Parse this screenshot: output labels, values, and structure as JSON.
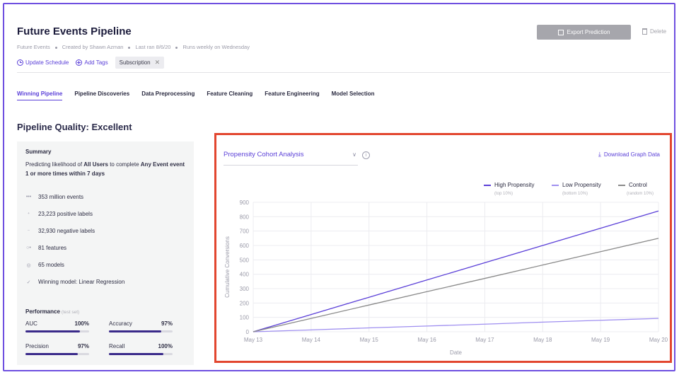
{
  "header": {
    "title": "Future Events Pipeline",
    "meta": [
      "Future Events",
      "Created by Shawn Azman",
      "Last ran 8/6/20",
      "Runs weekly on Wednesday"
    ],
    "update_schedule": "Update Schedule",
    "add_tags": "Add Tags",
    "tag": "Subscription",
    "export_label": "Export Prediction",
    "delete_label": "Delete"
  },
  "tabs": [
    "Winning Pipeline",
    "Pipeline Discoveries",
    "Data Preprocessing",
    "Feature Cleaning",
    "Feature Engineering",
    "Model Selection"
  ],
  "quality_title": "Pipeline Quality: Excellent",
  "summary": {
    "heading": "Summary",
    "desc_prefix": "Predicting likelihood of ",
    "desc_users": "All Users",
    "desc_mid": " to complete ",
    "desc_event": "Any Event event 1 or more times within 7 days",
    "stats": [
      {
        "icon": "events-icon",
        "glyph": "•••",
        "text": "353 million events"
      },
      {
        "icon": "positive-labels-icon",
        "glyph": "⁺",
        "text": "23,223 positive labels"
      },
      {
        "icon": "negative-labels-icon",
        "glyph": "⁻",
        "text": "32,930 negative labels"
      },
      {
        "icon": "features-icon",
        "glyph": "○•",
        "text": "81 features"
      },
      {
        "icon": "models-icon",
        "glyph": "◎",
        "text": "65 models"
      },
      {
        "icon": "check-circle-icon",
        "glyph": "✓",
        "text": "Winning model: Linear Regression"
      }
    ],
    "performance_label": "Performance",
    "performance_sub": "(test set)",
    "metrics": [
      {
        "name": "AUC",
        "value": "100%",
        "level": 1.0
      },
      {
        "name": "Accuracy",
        "value": "97%",
        "level": 0.97
      },
      {
        "name": "Precision",
        "value": "97%",
        "level": 0.97
      },
      {
        "name": "Recall",
        "value": "100%",
        "level": 1.0
      }
    ]
  },
  "chart_panel": {
    "select_label": "Propensity Cohort Analysis",
    "download_label": "Download Graph Data"
  },
  "chart_data": {
    "type": "line",
    "xlabel": "Date",
    "ylabel": "Cumulative Conversions",
    "x": [
      "May 13",
      "May 14",
      "May 15",
      "May 16",
      "May 17",
      "May 18",
      "May 19",
      "May 20"
    ],
    "ylim": [
      0,
      900
    ],
    "yticks": [
      0,
      100,
      200,
      300,
      400,
      500,
      600,
      700,
      800,
      900
    ],
    "grid": true,
    "legend_position": "top-right",
    "series": [
      {
        "name": "High Propensity",
        "sub": "(top 10%)",
        "color": "#5b40d8",
        "values": [
          0,
          120,
          240,
          360,
          480,
          600,
          720,
          840
        ]
      },
      {
        "name": "Low Propensity",
        "sub": "(bottom 10%)",
        "color": "#9f8ff0",
        "values": [
          0,
          13,
          27,
          40,
          53,
          67,
          80,
          93
        ]
      },
      {
        "name": "Control",
        "sub": "(random 10%)",
        "color": "#8a8a8a",
        "values": [
          0,
          93,
          186,
          279,
          371,
          464,
          557,
          650
        ]
      }
    ]
  }
}
